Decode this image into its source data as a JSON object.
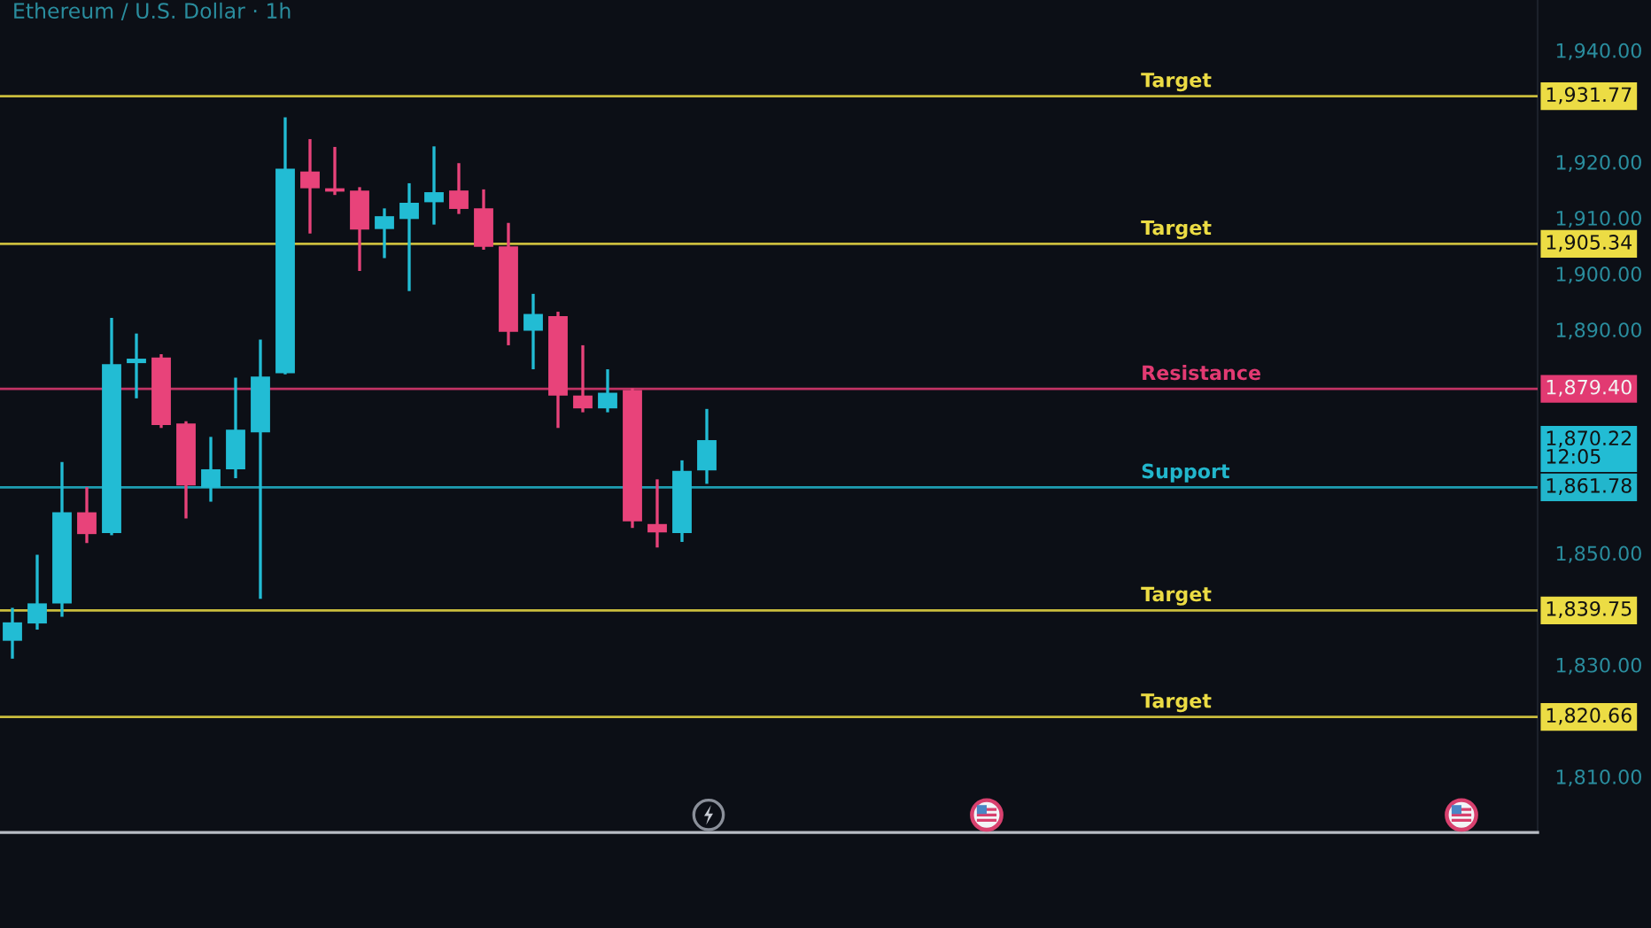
{
  "chart_data": {
    "type": "candlestick",
    "title": "Ethereum / U.S. Dollar · 1h",
    "categories": [
      null,
      null,
      null,
      null,
      null,
      null,
      null,
      null,
      null,
      null,
      null,
      null,
      null,
      null,
      null,
      null,
      null,
      null,
      null,
      null,
      null,
      null,
      null,
      null,
      null,
      null,
      null,
      null,
      null,
      null,
      null,
      null,
      null,
      null,
      null,
      null,
      null,
      null,
      null,
      null,
      null,
      null,
      null,
      null,
      null,
      null,
      null,
      null,
      null,
      null,
      null,
      null,
      null,
      null,
      null,
      null,
      null,
      null,
      null,
      null,
      null,
      null
    ],
    "ohlc": [
      [
        1834.3,
        1840.2,
        1831.1,
        1837.6
      ],
      [
        1837.4,
        1849.7,
        1836.3,
        1841.0
      ],
      [
        1841.0,
        1866.3,
        1838.6,
        1857.3
      ],
      [
        1857.3,
        1861.8,
        1851.8,
        1853.4
      ],
      [
        1853.6,
        1892.1,
        1853.2,
        1883.8
      ],
      [
        1884.0,
        1889.3,
        1877.7,
        1884.8
      ],
      [
        1885.0,
        1885.6,
        1872.4,
        1872.9
      ],
      [
        1873.2,
        1873.6,
        1856.2,
        1862.1
      ],
      [
        1861.7,
        1870.8,
        1859.2,
        1865.0
      ],
      [
        1865.0,
        1881.4,
        1863.4,
        1872.1
      ],
      [
        1871.6,
        1888.2,
        1841.8,
        1881.6
      ],
      [
        1882.2,
        1928.0,
        1882.0,
        1918.8
      ],
      [
        1918.3,
        1924.1,
        1907.2,
        1915.3
      ],
      [
        1915.3,
        1922.7,
        1914.1,
        1914.7
      ],
      [
        1914.9,
        1915.5,
        1900.5,
        1907.9
      ],
      [
        1908.0,
        1911.7,
        1902.8,
        1910.3
      ],
      [
        1909.8,
        1916.2,
        1896.9,
        1912.7
      ],
      [
        1912.8,
        1922.8,
        1908.8,
        1914.6
      ],
      [
        1914.9,
        1919.8,
        1910.7,
        1911.6
      ],
      [
        1911.7,
        1915.1,
        1904.3,
        1904.8
      ],
      [
        1904.9,
        1909.1,
        1887.2,
        1889.6
      ],
      [
        1889.8,
        1896.4,
        1882.9,
        1892.8
      ],
      [
        1892.4,
        1893.2,
        1872.4,
        1878.2
      ],
      [
        1878.2,
        1887.2,
        1875.2,
        1875.9
      ],
      [
        1875.9,
        1882.9,
        1875.2,
        1878.7
      ],
      [
        1879.2,
        1879.5,
        1854.5,
        1855.7
      ],
      [
        1855.2,
        1863.2,
        1851.0,
        1853.7
      ],
      [
        1853.6,
        1866.6,
        1852.0,
        1864.7
      ],
      [
        1864.8,
        1875.8,
        1862.4,
        1870.22
      ],
      null,
      null,
      null,
      null,
      null,
      null,
      null,
      null,
      null,
      null,
      null,
      null,
      null,
      null,
      null,
      null,
      null,
      null,
      null,
      null,
      null,
      null,
      null,
      null,
      null,
      null,
      null,
      null,
      null,
      null,
      null,
      null,
      null
    ],
    "colors": [
      "#22bcd4",
      "#22bcd4",
      "#22bcd4",
      "#e8437a",
      "#22bcd4",
      "#22bcd4",
      "#e8437a",
      "#e8437a",
      "#22bcd4",
      "#22bcd4",
      "#22bcd4",
      "#22bcd4",
      "#e8437a",
      "#e8437a",
      "#e8437a",
      "#22bcd4",
      "#22bcd4",
      "#22bcd4",
      "#e8437a",
      "#e8437a",
      "#e8437a",
      "#22bcd4",
      "#e8437a",
      "#e8437a",
      "#22bcd4",
      "#e8437a",
      "#e8437a",
      "#22bcd4",
      "#22bcd4",
      null,
      null,
      null,
      null,
      null,
      null,
      null,
      null,
      null,
      null,
      null,
      null,
      null,
      null,
      null,
      null,
      null,
      null,
      null,
      null,
      null,
      null,
      null,
      null,
      null,
      null,
      null,
      null,
      null,
      null,
      null,
      null,
      null
    ],
    "ylim": [
      1800,
      1949
    ],
    "yticks": [
      {
        "value": 1810,
        "label": "1,810.00"
      },
      {
        "value": 1830,
        "label": "1,830.00"
      },
      {
        "value": 1850,
        "label": "1,850.00"
      },
      {
        "value": 1890,
        "label": "1,890.00"
      },
      {
        "value": 1900,
        "label": "1,900.00"
      },
      {
        "value": 1910,
        "label": "1,910.00"
      },
      {
        "value": 1920,
        "label": "1,920.00"
      },
      {
        "value": 1940,
        "label": "1,940.00"
      }
    ],
    "tick_labels": "y",
    "ref_lines": [
      {
        "axis": "y",
        "value": 1931.77,
        "label": "Target",
        "color": "#ecdc44"
      },
      {
        "axis": "y",
        "value": 1905.34,
        "label": "Target",
        "color": "#ecdc44"
      },
      {
        "axis": "y",
        "value": 1879.4,
        "label": "Resistance",
        "color": "#e23a72"
      },
      {
        "axis": "y",
        "value": 1861.78,
        "label": "Support",
        "color": "#22b6cc"
      },
      {
        "axis": "y",
        "value": 1839.75,
        "label": "Target",
        "color": "#ecdc44"
      },
      {
        "axis": "y",
        "value": 1820.66,
        "label": "Target",
        "color": "#ecdc44"
      }
    ],
    "annotations": [
      "1,931.77",
      "1,905.34",
      "1,879.40",
      "1,861.78",
      "1,839.75",
      "1,820.66",
      "1,870.22\n12:05"
    ]
  }
}
